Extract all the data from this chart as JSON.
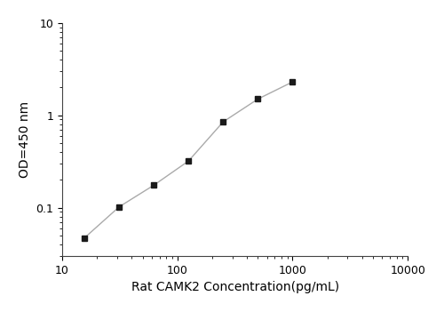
{
  "x": [
    15.625,
    31.25,
    62.5,
    125,
    250,
    500,
    1000
  ],
  "y": [
    0.047,
    0.102,
    0.175,
    0.32,
    0.85,
    1.5,
    2.3
  ],
  "xlabel": "Rat CAMK2 Concentration(pg/mL)",
  "ylabel": "OD=450 nm",
  "xlim": [
    10,
    10000
  ],
  "ylim": [
    0.03,
    10
  ],
  "xticks": [
    10,
    100,
    1000,
    10000
  ],
  "yticks": [
    0.1,
    1,
    10
  ],
  "ytick_labels": [
    "0.1",
    "1",
    "10"
  ],
  "xtick_labels": [
    "10",
    "100",
    "1000",
    "10000"
  ],
  "marker": "s",
  "marker_color": "#1a1a1a",
  "line_color": "#aaaaaa",
  "marker_size": 5,
  "line_width": 1.0,
  "background_color": "#ffffff",
  "xlabel_fontsize": 10,
  "ylabel_fontsize": 10,
  "tick_fontsize": 9
}
